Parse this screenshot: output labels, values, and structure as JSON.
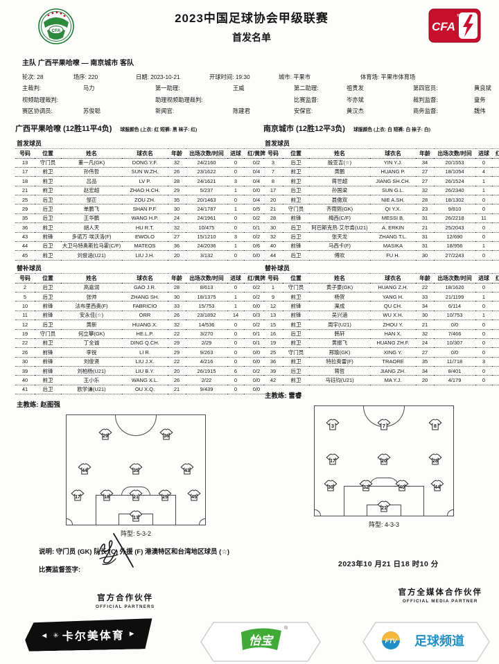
{
  "header": {
    "competition": "2023中国足球协会甲级联赛",
    "sheet_title": "首发名单",
    "matchup": "主队 广西平果哈嘹 — 南京城市 客队"
  },
  "icons": {
    "left_logo": "cfa-green-crest-logo",
    "right_logo": "cfa-red-lightning-logo",
    "right_logo_text": "CFA",
    "shirt_icon": "jersey-shirt-icon"
  },
  "info_row1": [
    {
      "label": "轮次:",
      "value": "28"
    },
    {
      "label": "场序:",
      "value": "220"
    },
    {
      "label": "日期:",
      "value": "2023-10-21"
    },
    {
      "label": "开球时间:",
      "value": "19:30"
    },
    {
      "label": "城市:",
      "value": "平果市"
    },
    {
      "label": "体育场:",
      "value": "平果市体育场"
    }
  ],
  "info_rows": [
    [
      {
        "label": "主裁判:",
        "value": "马力"
      },
      {
        "label": "第一助理:",
        "value": "王威"
      },
      {
        "label": "第二助理:",
        "value": "祖贵发"
      },
      {
        "label": "第四官员:",
        "value": "黄良斌"
      }
    ],
    [
      {
        "label": "视频助理裁判:",
        "value": ""
      },
      {
        "label": "助理视频助理裁判:",
        "value": ""
      },
      {
        "label": "比赛监督:",
        "value": "岑亦斌"
      },
      {
        "label": "裁判监督:",
        "value": "童务"
      }
    ],
    [
      {
        "label": "赛区协调员:",
        "value": "苏俊聪"
      },
      {
        "label": "新闻官:",
        "value": "陈建君"
      },
      {
        "label": "安保官:",
        "value": "黄汉杰"
      },
      {
        "label": "商务监督:",
        "value": "魏伟"
      }
    ]
  ],
  "table_headers": [
    "号码",
    "位置",
    "姓名",
    "球衣名",
    "年龄",
    "出场次数/时间",
    "进球",
    "红/黄牌"
  ],
  "sections": {
    "starters_label": "首发球员",
    "subs_label": "替补球员",
    "coach_label": "主教练:",
    "formation_label": "阵型:"
  },
  "home": {
    "name": "广西平果哈嘹",
    "record": "(12胜11平4负)",
    "kit": "球服颜色 (上衣: 红 短裤: 黑 袜子: 红)",
    "coach": "赵图强",
    "formation": "5-3-2",
    "formation_rows": [
      [
        "29",
        "36"
      ],
      [
        "44",
        "35",
        "43"
      ],
      [
        "17",
        "18",
        "21",
        "25",
        "45"
      ]
    ],
    "goalkeeper": "13",
    "starters": [
      [
        "13",
        "守门员",
        "董一凡(GK)",
        "DONG Y.F.",
        "32",
        "24/2160",
        "0",
        "0/2"
      ],
      [
        "17",
        "前卫",
        "孙伟哲",
        "SUN W.ZH.",
        "26",
        "23/1622",
        "0",
        "0/4"
      ],
      [
        "18",
        "前卫",
        "吕品",
        "LV P.",
        "28",
        "24/1621",
        "3",
        "0/4"
      ],
      [
        "21",
        "前卫",
        "赵宏超",
        "ZHAO H.CH.",
        "29",
        "5/237",
        "1",
        "0/0"
      ],
      [
        "25",
        "后卫",
        "邹正",
        "ZOU ZH.",
        "35",
        "20/1463",
        "0",
        "0/4"
      ],
      [
        "29",
        "后卫",
        "单鹏飞",
        "SHAN P.F.",
        "30",
        "24/1787",
        "1",
        "0/5"
      ],
      [
        "35",
        "后卫",
        "王华鹏",
        "WANG H.P.",
        "24",
        "24/1961",
        "0",
        "0/2"
      ],
      [
        "36",
        "前卫",
        "胡人天",
        "HU R.T.",
        "32",
        "10/475",
        "0",
        "0/1"
      ],
      [
        "43",
        "前锋",
        "多诺万·埃沃洛(F)",
        "EWOLO",
        "27",
        "15/1210",
        "3",
        "0/2"
      ],
      [
        "44",
        "后卫",
        "大卫马特奥斯拉马霍(C/F)",
        "MATEOS",
        "36",
        "24/2036",
        "1",
        "0/6"
      ],
      [
        "45",
        "前卫",
        "刘俊涵(U21)",
        "LIU J.H.",
        "20",
        "3/132",
        "0",
        "0/0"
      ]
    ],
    "subs": [
      [
        "2",
        "后卫",
        "高嘉润",
        "GAO J.R.",
        "28",
        "8/613",
        "0",
        "0/2"
      ],
      [
        "5",
        "后卫",
        "张帅",
        "ZHANG SH.",
        "30",
        "18/1375",
        "1",
        "0/2"
      ],
      [
        "10",
        "前锋",
        "法布里西奥(F)",
        "FABRICIO",
        "33",
        "15/753",
        "1",
        "0/0"
      ],
      [
        "11",
        "前锋",
        "安永佳(☆)",
        "ORR",
        "26",
        "23/1892",
        "14",
        "0/3"
      ],
      [
        "12",
        "后卫",
        "黄新",
        "HUANG X.",
        "32",
        "14/536",
        "0",
        "0/2"
      ],
      [
        "19",
        "守门员",
        "何立攀(GK)",
        "HE.L.P.",
        "22",
        "3/270",
        "0",
        "0/1"
      ],
      [
        "22",
        "前卫",
        "丁全诚",
        "DING Q.CH.",
        "29",
        "2/29",
        "0",
        "0/1"
      ],
      [
        "26",
        "前锋",
        "李锐",
        "LI R.",
        "29",
        "9/263",
        "0",
        "0/0"
      ],
      [
        "30",
        "前锋",
        "刘俊贤",
        "LIU J.X.",
        "22",
        "4/216",
        "0",
        "0/0"
      ],
      [
        "39",
        "前锋",
        "刘柏杨(U21)",
        "LIU B.Y.",
        "20",
        "26/1915",
        "6",
        "0/2"
      ],
      [
        "40",
        "前卫",
        "王小乐",
        "WANG X.L.",
        "26",
        "2/22",
        "0",
        "0/0"
      ],
      [
        "41",
        "后卫",
        "欧学谦(U21)",
        "OU X.Q.",
        "21",
        "9/439",
        "0",
        "0/0"
      ]
    ]
  },
  "away": {
    "name": "南京城市",
    "record": "(12胜12平3负)",
    "kit": "球服颜色 (上衣: 白 短裤: 白 袜子: 白)",
    "coach": "雷睿",
    "formation": "4-3-3",
    "formation_rows": [
      [
        "3",
        "7",
        "8"
      ],
      [
        "17",
        "20",
        "28"
      ],
      [
        "30",
        "32",
        "40",
        "44"
      ]
    ],
    "goalkeeper": "21",
    "starters": [
      [
        "3",
        "后卫",
        "殷亚吉(☆)",
        "YIN Y.J.",
        "34",
        "20/1553",
        "0",
        "0/2"
      ],
      [
        "7",
        "前卫",
        "黄鹏",
        "HUANG P.",
        "27",
        "18/1054",
        "4",
        "0/4"
      ],
      [
        "8",
        "前卫",
        "蒋世超",
        "JIANG SH.CH.",
        "27",
        "26/1524",
        "1",
        "0/2"
      ],
      [
        "17",
        "后卫",
        "孙国梁",
        "SUN G.L.",
        "32",
        "26/2340",
        "1",
        "0/3"
      ],
      [
        "20",
        "前卫",
        "聂傲双",
        "NIE A.SH.",
        "28",
        "18/1302",
        "0",
        "0/4"
      ],
      [
        "21",
        "守门员",
        "齐雨熙(GK)",
        "QI Y.X.",
        "23",
        "9/810",
        "0",
        "0/1"
      ],
      [
        "28",
        "前锋",
        "梅西(C/F)",
        "MESSI B.",
        "31",
        "26/2218",
        "11",
        "1/3"
      ],
      [
        "30",
        "后卫",
        "阿巴斯克热·艾尔肯(U21)",
        "A. ERKIN",
        "21",
        "25/2043",
        "0",
        "1/2"
      ],
      [
        "32",
        "后卫",
        "张天龙",
        "ZHANG T.L.",
        "31",
        "12/690",
        "0",
        "0/2"
      ],
      [
        "40",
        "前锋",
        "马西卡(F)",
        "MASIKA",
        "31",
        "18/956",
        "1",
        "0/2"
      ],
      [
        "44",
        "后卫",
        "傅欢",
        "FU H.",
        "30",
        "27/2243",
        "0",
        "0/3"
      ]
    ],
    "subs": [
      [
        "1",
        "守门员",
        "黄子豪(GK)",
        "HUANG Z.H.",
        "22",
        "18/1620",
        "0",
        "0/1"
      ],
      [
        "9",
        "前卫",
        "杨贺",
        "YANG H.",
        "33",
        "21/1199",
        "1",
        "0/4"
      ],
      [
        "12",
        "前锋",
        "渠成",
        "QU CH.",
        "34",
        "6/114",
        "0",
        "0/0"
      ],
      [
        "13",
        "前锋",
        "吴兴涵",
        "WU X.H.",
        "30",
        "10/753",
        "1",
        "0/1"
      ],
      [
        "15",
        "前卫",
        "周宇(U21)",
        "ZHOU Y.",
        "21",
        "0/0",
        "0",
        "0/0"
      ],
      [
        "16",
        "后卫",
        "韩轩",
        "HAN X.",
        "32",
        "7/466",
        "0",
        "0/2"
      ],
      [
        "19",
        "前卫",
        "黄振飞",
        "HUANG ZH.F.",
        "24",
        "10/307",
        "0",
        "0/3"
      ],
      [
        "25",
        "守门员",
        "邢瑜(GK)",
        "XING Y.",
        "27",
        "0/0",
        "0",
        "0/0"
      ],
      [
        "36",
        "前卫",
        "特拉奥雷(F)",
        "TRAORE",
        "35",
        "11/718",
        "3",
        "0/1"
      ],
      [
        "39",
        "后卫",
        "蒋哲",
        "JIANG ZH.",
        "34",
        "8/401",
        "0",
        "1/1"
      ],
      [
        "42",
        "前卫",
        "马钰钧(U21)",
        "MA Y.J.",
        "20",
        "4/179",
        "0",
        "0/1"
      ]
    ]
  },
  "legend": "说明: 守门员 (GK) 队长 (C) 外援 (F) 港澳特区和台湾地区球员 (☆)",
  "signature_label": "比赛监督签字:",
  "print_time": "2023年10 月21 日18 时10 分",
  "footer": {
    "partners_cn": "官方合作伙伴",
    "partners_en": "OFFICIAL PARTNERS",
    "media_cn": "官方全媒体合作伙伴",
    "media_en": "OFFICIAL MEDIA PARTNER",
    "sponsor1": "卡尔美体育",
    "sponsor2": "怡宝",
    "sponsor3_badge": "FTV",
    "sponsor3": "足球频道"
  },
  "colors": {
    "cfa_red": "#c8102e",
    "crest_green": "#1f7a33",
    "sponsor2_green": "#3faa35",
    "sponsor3_blue": "#1f8fc7",
    "ink": "#151515"
  }
}
